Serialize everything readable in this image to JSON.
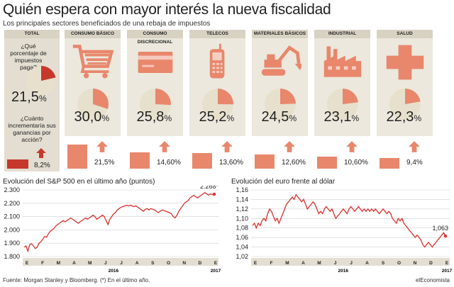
{
  "header": {
    "title": "Quién espera con mayor interés la nueva fiscalidad",
    "subtitle": "Los principales sectores beneficiados de una rebaja de impuestos"
  },
  "total": {
    "label": "TOTAL",
    "question1": "¿Qué porcentaje de impuestos paga?",
    "question2": "¿Cuánto incrementaría sus ganancias por acción?",
    "tax_value": "21,5",
    "tax_unit": "%",
    "tax_fraction": 0.215,
    "gain_label": "8,2%",
    "gain_fraction": 0.082
  },
  "sectors": [
    {
      "label": "CONSUMO BÁSICO",
      "icon": "shopping-cart-icon",
      "tax_value": "30,0",
      "tax_unit": "%",
      "tax_fraction": 0.3,
      "gain_label": "21,5%",
      "gain_fraction": 0.215
    },
    {
      "label": "CONSUMO DISCRECIONAL",
      "icon": "credit-card-icon",
      "tax_value": "25,8",
      "tax_unit": "%",
      "tax_fraction": 0.258,
      "gain_label": "14,60%",
      "gain_fraction": 0.146
    },
    {
      "label": "TELECOS",
      "icon": "mobile-phone-icon",
      "tax_value": "25,2",
      "tax_unit": "%",
      "tax_fraction": 0.252,
      "gain_label": "13,60%",
      "gain_fraction": 0.136
    },
    {
      "label": "MATERIALES BÁSICOS",
      "icon": "excavator-icon",
      "tax_value": "24,5",
      "tax_unit": "%",
      "tax_fraction": 0.245,
      "gain_label": "12,60%",
      "gain_fraction": 0.126
    },
    {
      "label": "INDUSTRIAL",
      "icon": "factory-icon",
      "tax_value": "23,1",
      "tax_unit": "%",
      "tax_fraction": 0.231,
      "gain_label": "10,60%",
      "gain_fraction": 0.106
    },
    {
      "label": "SALUD",
      "icon": "medical-cross-icon",
      "tax_value": "22,3",
      "tax_unit": "%",
      "tax_fraction": 0.223,
      "gain_label": "9,4%",
      "gain_fraction": 0.094
    }
  ],
  "colors": {
    "accent": "#e8876c",
    "total_accent": "#c7382c",
    "panel": "#ece8dd",
    "pie_base": "#e6e0cc",
    "line": "#d9302c"
  },
  "chart_data": [
    {
      "type": "line",
      "title": "Evolución del S&P 500 en el último año (puntos)",
      "x_ticks": [
        "E",
        "F",
        "M",
        "A",
        "M",
        "J",
        "J",
        "A",
        "S",
        "O",
        "N",
        "D",
        "E"
      ],
      "year_labels": [
        "2016",
        "2017"
      ],
      "y_ticks": [
        "1.800",
        "1.900",
        "2.000",
        "2.100",
        "2.200",
        "2.300"
      ],
      "ylim": [
        1800,
        2300
      ],
      "annotation": "2.268*",
      "series": [
        {
          "values": [
            1870,
            1880,
            1840,
            1890,
            1895,
            1880,
            1860,
            1870,
            1900,
            1910,
            1930,
            1950,
            1945,
            1970,
            1990,
            2000,
            2010,
            2030,
            2040,
            2050,
            2060,
            2070,
            2060,
            2070,
            2080,
            2090,
            2080,
            2070,
            2060,
            2050,
            2060,
            2070,
            2080,
            2090,
            2080,
            2090,
            2100,
            2110,
            2100,
            2080,
            2090,
            2100,
            2110,
            2100,
            2070,
            2040,
            2080,
            2100,
            2120,
            2130,
            2150,
            2160,
            2170,
            2175,
            2180,
            2185,
            2180,
            2185,
            2180,
            2175,
            2180,
            2170,
            2160,
            2150,
            2140,
            2155,
            2160,
            2150,
            2160,
            2155,
            2150,
            2140,
            2130,
            2140,
            2150,
            2145,
            2140,
            2135,
            2130,
            2120,
            2100,
            2090,
            2110,
            2140,
            2160,
            2180,
            2200,
            2210,
            2220,
            2240,
            2250,
            2260,
            2250,
            2240,
            2250,
            2260,
            2270,
            2280,
            2270,
            2260,
            2270,
            2265,
            2268
          ]
        }
      ]
    },
    {
      "type": "line",
      "title": "Evolución del euro frente al dólar",
      "x_ticks": [
        "E",
        "F",
        "M",
        "A",
        "M",
        "J",
        "J",
        "A",
        "S",
        "O",
        "N",
        "D",
        "E"
      ],
      "year_labels": [
        "2016",
        "2017"
      ],
      "y_ticks": [
        "1,02",
        "1,04",
        "1,06",
        "1,08",
        "1,10",
        "1,12",
        "1,14",
        "1,16"
      ],
      "ylim": [
        1.02,
        1.16
      ],
      "annotation": "1,063",
      "series": [
        {
          "values": [
            1.085,
            1.09,
            1.08,
            1.09,
            1.085,
            1.095,
            1.1,
            1.095,
            1.11,
            1.12,
            1.115,
            1.105,
            1.095,
            1.1,
            1.09,
            1.1,
            1.11,
            1.12,
            1.13,
            1.135,
            1.14,
            1.145,
            1.14,
            1.15,
            1.145,
            1.14,
            1.135,
            1.14,
            1.13,
            1.12,
            1.125,
            1.13,
            1.135,
            1.13,
            1.12,
            1.11,
            1.115,
            1.11,
            1.12,
            1.125,
            1.12,
            1.115,
            1.12,
            1.11,
            1.1,
            1.105,
            1.11,
            1.115,
            1.12,
            1.115,
            1.11,
            1.12,
            1.125,
            1.12,
            1.115,
            1.12,
            1.125,
            1.12,
            1.115,
            1.12,
            1.115,
            1.12,
            1.115,
            1.12,
            1.115,
            1.12,
            1.115,
            1.11,
            1.115,
            1.12,
            1.115,
            1.11,
            1.115,
            1.11,
            1.1,
            1.095,
            1.09,
            1.1,
            1.095,
            1.1,
            1.09,
            1.085,
            1.08,
            1.075,
            1.07,
            1.065,
            1.06,
            1.065,
            1.06,
            1.055,
            1.045,
            1.04,
            1.045,
            1.05,
            1.045,
            1.04,
            1.045,
            1.05,
            1.055,
            1.06,
            1.065,
            1.07,
            1.063
          ]
        }
      ]
    }
  ],
  "footer": {
    "source": "Fuente: Morgan Stanley y Bloomberg. (*) En el último año.",
    "brand": "elEconomista"
  }
}
